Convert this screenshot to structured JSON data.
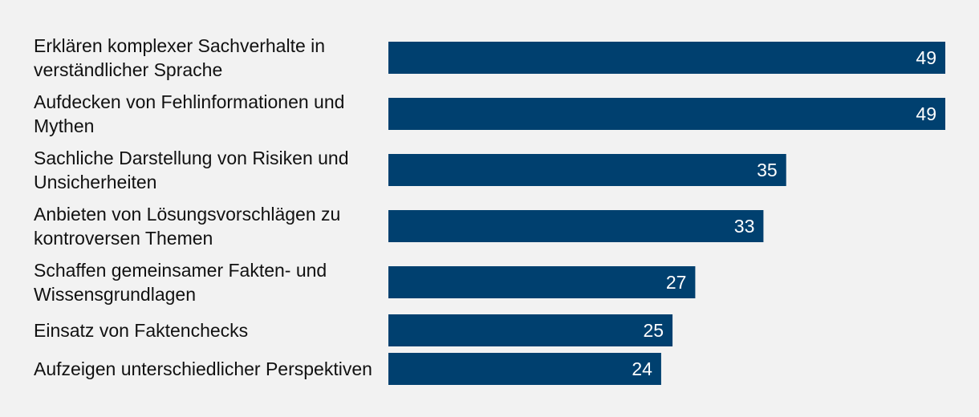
{
  "chart_data": {
    "type": "bar",
    "orientation": "horizontal",
    "categories": [
      [
        "Erklären komplexer Sachverhalte in",
        "verständlicher Sprache"
      ],
      [
        "Aufdecken von Fehlinformationen und",
        "Mythen"
      ],
      [
        "Sachliche Darstellung von Risiken und",
        "Unsicherheiten"
      ],
      [
        "Anbieten von Lösungsvorschlägen zu",
        "kontroversen Themen"
      ],
      [
        "Schaffen gemeinsamer Fakten- und",
        "Wissensgrundlagen"
      ],
      [
        "Einsatz von Faktenchecks"
      ],
      [
        "Aufzeigen unterschiedlicher Perspektiven"
      ]
    ],
    "values": [
      49,
      49,
      35,
      33,
      27,
      25,
      24
    ],
    "xlim": [
      0,
      49
    ],
    "grid": false,
    "legend": "none",
    "bar_color": "#00406f",
    "label_color": "#ffffff"
  }
}
